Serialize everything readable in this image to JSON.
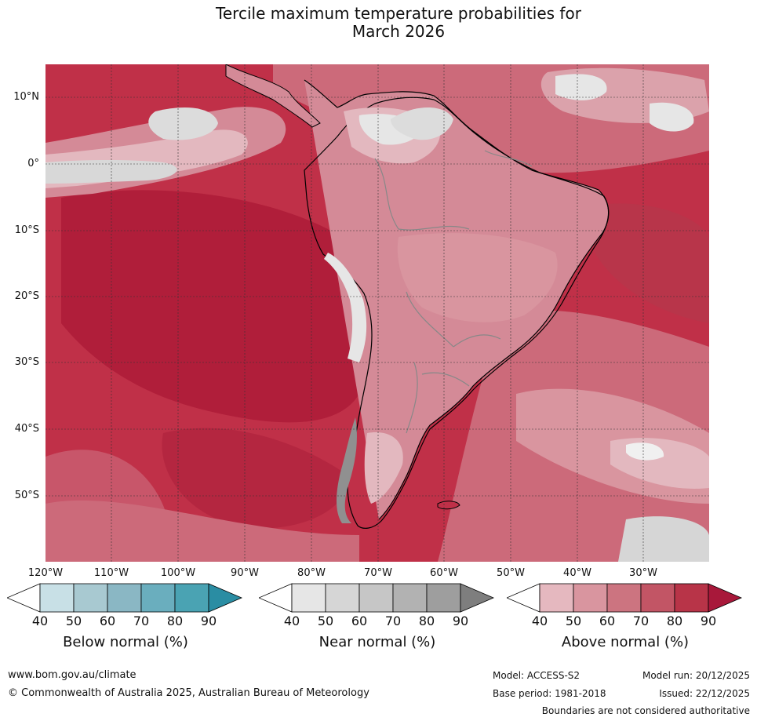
{
  "title": {
    "line1": "Tercile maximum temperature probabilities for",
    "line2": "March 2026"
  },
  "map": {
    "lat_labels": [
      "10°N",
      "0°",
      "10°S",
      "20°S",
      "30°S",
      "40°S",
      "50°S"
    ],
    "lon_labels": [
      "120°W",
      "110°W",
      "100°W",
      "90°W",
      "80°W",
      "70°W",
      "60°W",
      "50°W",
      "40°W",
      "30°W"
    ],
    "region": "South America and surrounding oceans"
  },
  "colorbars": [
    {
      "title": "Below normal (%)",
      "ticks": [
        "40",
        "50",
        "60",
        "70",
        "80",
        "90"
      ],
      "colors": [
        "#ffffff",
        "#c8e0e6",
        "#a8c9d1",
        "#8ab7c4",
        "#6aaebe",
        "#4aa3b3",
        "#2a8da3"
      ]
    },
    {
      "title": "Near normal (%)",
      "ticks": [
        "40",
        "50",
        "60",
        "70",
        "80",
        "90"
      ],
      "colors": [
        "#ffffff",
        "#e6e6e6",
        "#d6d6d6",
        "#c6c6c6",
        "#b2b2b2",
        "#9e9e9e",
        "#7e7e7e"
      ]
    },
    {
      "title": "Above normal (%)",
      "ticks": [
        "40",
        "50",
        "60",
        "70",
        "80",
        "90"
      ],
      "colors": [
        "#ffffff",
        "#e5b8bf",
        "#d9959f",
        "#cc7480",
        "#c25565",
        "#b83448",
        "#a8183a"
      ]
    }
  ],
  "footer": {
    "website": "www.bom.gov.au/climate",
    "copyright": "© Commonwealth of Australia 2025, Australian Bureau of Meteorology",
    "model": "Model: ACCESS-S2",
    "model_run": "Model run: 20/12/2025",
    "base_period": "Base period: 1981-2018",
    "issued": "Issued: 22/12/2025",
    "disclaimer": "Boundaries are not considered authoritative"
  }
}
